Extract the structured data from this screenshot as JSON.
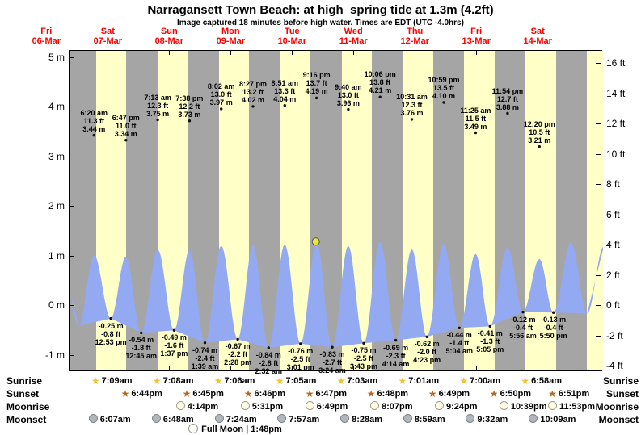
{
  "title": "Narragansett Town Beach: at high  spring tide at 1.3m (4.2ft)",
  "subtitle": "Image captured 18 minutes before high water. Times are EDT (UTC -4.0hrs)",
  "colors": {
    "night": "#a5a5a5",
    "day": "#ffffc8",
    "tide": "#93a9f1",
    "marker": "#e8e83c",
    "day_label": "#ff0000",
    "dot": "#111111",
    "sunrise_star": "#f2c233",
    "sunset_star": "#b5691f",
    "moonrise_fill": "#fffce8",
    "moonset_fill": "#b2b6bd"
  },
  "days": [
    {
      "name": "Fri",
      "date": "06-Mar",
      "noon_t": -12
    },
    {
      "name": "Sat",
      "date": "07-Mar",
      "noon_t": 12
    },
    {
      "name": "Sun",
      "date": "08-Mar",
      "noon_t": 36
    },
    {
      "name": "Mon",
      "date": "09-Mar",
      "noon_t": 60
    },
    {
      "name": "Tue",
      "date": "10-Mar",
      "noon_t": 84
    },
    {
      "name": "Wed",
      "date": "11-Mar",
      "noon_t": 108
    },
    {
      "name": "Thu",
      "date": "12-Mar",
      "noon_t": 132
    },
    {
      "name": "Fri",
      "date": "13-Mar",
      "noon_t": 156
    },
    {
      "name": "Sat",
      "date": "14-Mar",
      "noon_t": 180
    }
  ],
  "axes": {
    "meters": [
      {
        "v": 5,
        "label": "5 m"
      },
      {
        "v": 4,
        "label": "4 m"
      },
      {
        "v": 3,
        "label": "3 m"
      },
      {
        "v": 2,
        "label": "2 m"
      },
      {
        "v": 1,
        "label": "1 m"
      },
      {
        "v": 0,
        "label": "0 m"
      },
      {
        "v": -1,
        "label": "-1 m"
      }
    ],
    "feet": [
      {
        "v": 16,
        "label": "16 ft"
      },
      {
        "v": 14,
        "label": "14 ft"
      },
      {
        "v": 12,
        "label": "12 ft"
      },
      {
        "v": 10,
        "label": "10 ft"
      },
      {
        "v": 8,
        "label": "8 ft"
      },
      {
        "v": 6,
        "label": "6 ft"
      },
      {
        "v": 4,
        "label": "4 ft"
      },
      {
        "v": 2,
        "label": "2 ft"
      },
      {
        "v": 0,
        "label": "0 ft"
      },
      {
        "v": -2,
        "label": "-2 ft"
      },
      {
        "v": -4,
        "label": "-4 ft"
      }
    ]
  },
  "chart_data": {
    "type": "area",
    "x_unit": "hours from Sat 07-Mar 00:00 EDT",
    "x_range": {
      "from": -3.25,
      "to": 205.2
    },
    "y_range": {
      "from": -1.33,
      "to": 5.14
    },
    "highs": [
      {
        "t": 6.33,
        "time": "6:20 am",
        "ft": "11.3 ft",
        "m": "3.44 m",
        "val": 3.44
      },
      {
        "t": 18.78,
        "time": "6:47 pm",
        "ft": "11.0 ft",
        "m": "3.34 m",
        "val": 3.34
      },
      {
        "t": 31.22,
        "time": "7:13 am",
        "ft": "12.3 ft",
        "m": "3.75 m",
        "val": 3.75
      },
      {
        "t": 43.63,
        "time": "7:38 pm",
        "ft": "12.2 ft",
        "m": "3.73 m",
        "val": 3.73
      },
      {
        "t": 56.03,
        "time": "8:02 am",
        "ft": "13.0 ft",
        "m": "3.97 m",
        "val": 3.97
      },
      {
        "t": 68.45,
        "time": "8:27 pm",
        "ft": "13.2 ft",
        "m": "4.02 m",
        "val": 4.02
      },
      {
        "t": 80.85,
        "time": "8:51 am",
        "ft": "13.3 ft",
        "m": "4.04 m",
        "val": 4.04
      },
      {
        "t": 93.27,
        "time": "9:16 pm",
        "ft": "13.7 ft",
        "m": "4.19 m",
        "val": 4.19
      },
      {
        "t": 105.67,
        "time": "9:40 am",
        "ft": "13.0 ft",
        "m": "3.96 m",
        "val": 3.96
      },
      {
        "t": 118.1,
        "time": "10:06 pm",
        "ft": "13.8 ft",
        "m": "4.21 m",
        "val": 4.21
      },
      {
        "t": 130.52,
        "time": "10:31 am",
        "ft": "12.3 ft",
        "m": "3.76 m",
        "val": 3.76
      },
      {
        "t": 142.98,
        "time": "10:59 pm",
        "ft": "13.5 ft",
        "m": "4.10 m",
        "val": 4.1
      },
      {
        "t": 155.42,
        "time": "11:25 am",
        "ft": "11.5 ft",
        "m": "3.49 m",
        "val": 3.49
      },
      {
        "t": 167.9,
        "time": "11:54 pm",
        "ft": "12.7 ft",
        "m": "3.88 m",
        "val": 3.88
      },
      {
        "t": 180.33,
        "time": "12:20 pm",
        "ft": "10.5 ft",
        "m": "3.21 m",
        "val": 3.21
      }
    ],
    "lows": [
      {
        "t": 12.88,
        "m": "-0.25 m",
        "ft": "-0.8 ft",
        "time": "12:53 pm",
        "val": -0.25
      },
      {
        "t": 24.75,
        "m": "-0.54 m",
        "ft": "-1.8 ft",
        "time": "12:45 am",
        "val": -0.54
      },
      {
        "t": 37.62,
        "m": "-0.49 m",
        "ft": "-1.6 ft",
        "time": "1:37 pm",
        "val": -0.49
      },
      {
        "t": 49.65,
        "m": "-0.74 m",
        "ft": "-2.4 ft",
        "time": "1:39 am",
        "val": -0.74
      },
      {
        "t": 62.47,
        "m": "-0.67 m",
        "ft": "-2.2 ft",
        "time": "2:28 pm",
        "val": -0.67
      },
      {
        "t": 74.53,
        "m": "-0.84 m",
        "ft": "-2.8 ft",
        "time": "2:32 am",
        "val": -0.84
      },
      {
        "t": 87.02,
        "m": "-0.76 m",
        "ft": "-2.5 ft",
        "time": "3:01 pm",
        "val": -0.76
      },
      {
        "t": 99.4,
        "m": "-0.83 m",
        "ft": "-2.7 ft",
        "time": "3:24 am",
        "val": -0.83
      },
      {
        "t": 111.72,
        "m": "-0.75 m",
        "ft": "-2.5 ft",
        "time": "3:43 pm",
        "val": -0.75
      },
      {
        "t": 124.23,
        "m": "-0.69 m",
        "ft": "-2.3 ft",
        "time": "4:14 am",
        "val": -0.69
      },
      {
        "t": 136.38,
        "m": "-0.62 m",
        "ft": "-2.0 ft",
        "time": "4:23 pm",
        "val": -0.62
      },
      {
        "t": 149.07,
        "m": "-0.44 m",
        "ft": "-1.4 ft",
        "time": "5:04 am",
        "val": -0.44
      },
      {
        "t": 161.08,
        "m": "-0.41 m",
        "ft": "-1.3 ft",
        "time": "5:05 pm",
        "val": -0.41
      },
      {
        "t": 173.93,
        "m": "-0.12 m",
        "ft": "-0.4 ft",
        "time": "5:56 am",
        "val": -0.12
      },
      {
        "t": 185.83,
        "m": "-0.13 m",
        "ft": "-0.4 ft",
        "time": "5:50 pm",
        "val": -0.13
      }
    ],
    "current_marker": {
      "t": 93.0,
      "level_m": 1.3
    },
    "curve_peak_scaling": {
      "base_m": 3.21,
      "base_level": 0.95,
      "slope": 0.35
    },
    "curve_padding_pre": [
      {
        "t": -6.1,
        "v": 1.0
      },
      {
        "t": 0.35,
        "v": -0.4
      }
    ],
    "curve_padding_post": [
      {
        "t": 192.7,
        "v": 1.28
      },
      {
        "t": 199.0,
        "v": -0.15
      },
      {
        "t": 205.5,
        "v": 1.2
      }
    ],
    "extra_daylight_band": {
      "from": 198.95,
      "to": 205.3
    }
  },
  "astro": {
    "sunrise": {
      "label": "Sunrise",
      "items": [
        {
          "t": 7.15,
          "time": "7:09am"
        },
        {
          "t": 31.13,
          "time": "7:08am"
        },
        {
          "t": 55.1,
          "time": "7:06am"
        },
        {
          "t": 79.08,
          "time": "7:05am"
        },
        {
          "t": 103.05,
          "time": "7:03am"
        },
        {
          "t": 127.02,
          "time": "7:01am"
        },
        {
          "t": 151.0,
          "time": "7:00am"
        },
        {
          "t": 174.97,
          "time": "6:58am"
        }
      ]
    },
    "sunset": {
      "label": "Sunset",
      "items": [
        {
          "t": 18.73,
          "time": "6:44pm"
        },
        {
          "t": 42.75,
          "time": "6:45pm"
        },
        {
          "t": 66.77,
          "time": "6:46pm"
        },
        {
          "t": 90.78,
          "time": "6:47pm"
        },
        {
          "t": 114.8,
          "time": "6:48pm"
        },
        {
          "t": 138.82,
          "time": "6:49pm"
        },
        {
          "t": 162.83,
          "time": "6:50pm"
        },
        {
          "t": 186.85,
          "time": "6:51pm"
        }
      ]
    },
    "moonrise": {
      "label": "Moonrise",
      "items": [
        {
          "t": 40.23,
          "time": "4:14pm"
        },
        {
          "t": 65.52,
          "time": "5:31pm"
        },
        {
          "t": 90.82,
          "time": "6:49pm"
        },
        {
          "t": 116.12,
          "time": "8:07pm"
        },
        {
          "t": 141.4,
          "time": "9:24pm"
        },
        {
          "t": 166.65,
          "time": "10:39pm"
        },
        {
          "t": 191.88,
          "time": "11:53pm"
        }
      ]
    },
    "moonset": {
      "label": "Moonset",
      "items": [
        {
          "t": 6.12,
          "time": "6:07am"
        },
        {
          "t": 30.8,
          "time": "6:48am"
        },
        {
          "t": 55.4,
          "time": "7:24am"
        },
        {
          "t": 79.95,
          "time": "7:57am"
        },
        {
          "t": 104.47,
          "time": "8:28am"
        },
        {
          "t": 128.98,
          "time": "8:59am"
        },
        {
          "t": 153.53,
          "time": "9:32am"
        },
        {
          "t": 178.15,
          "time": "10:09am"
        }
      ]
    },
    "full_moon": {
      "t": 61.8,
      "text": "Full Moon | 1:48pm"
    }
  }
}
